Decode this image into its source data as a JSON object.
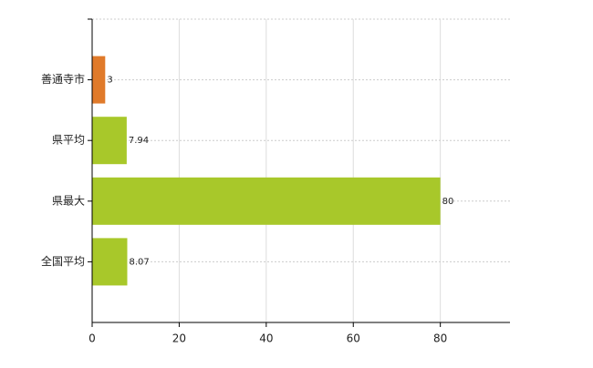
{
  "chart_data": {
    "type": "bar",
    "orientation": "horizontal",
    "categories": [
      "善通寺市",
      "県平均",
      "県最大",
      "全国平均"
    ],
    "values": [
      3,
      7.94,
      80,
      8.07
    ],
    "colors": [
      "#e07a2a",
      "#a8c82a",
      "#a8c82a",
      "#a8c82a"
    ],
    "xlim": [
      0,
      96
    ],
    "xticks": [
      0,
      20,
      40,
      60,
      80
    ],
    "grid": true
  }
}
